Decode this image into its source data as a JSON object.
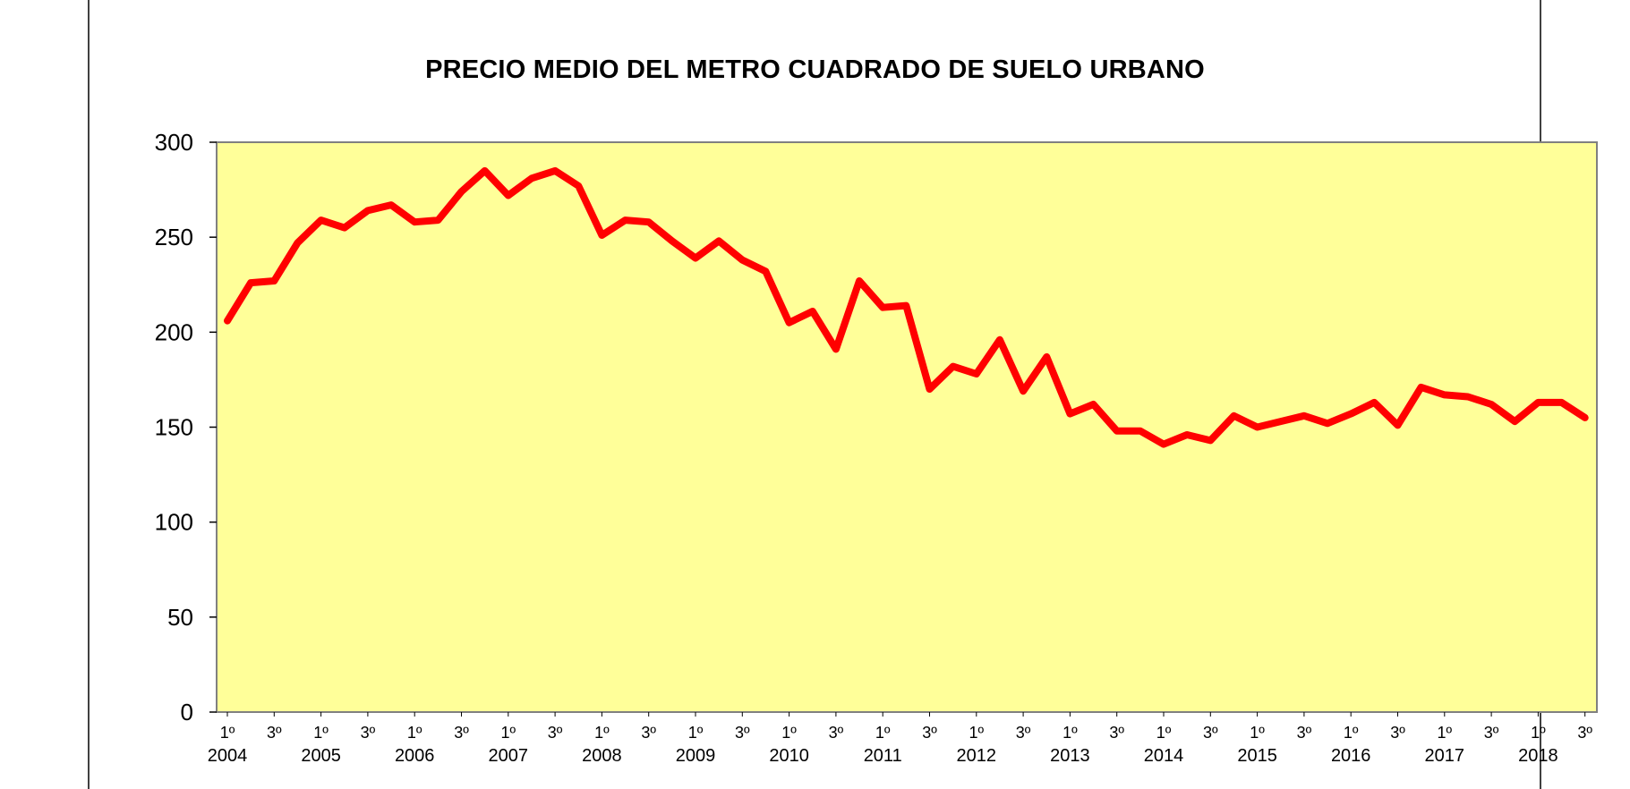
{
  "chart_data": {
    "type": "line",
    "title": "PRECIO MEDIO DEL METRO CUADRADO DE SUELO URBANO",
    "xlabel": "",
    "ylabel": "",
    "ylim": [
      0,
      300
    ],
    "yticks": [
      0,
      50,
      100,
      150,
      200,
      250,
      300
    ],
    "grid": false,
    "legend": "none",
    "colors": {
      "line": "#ff0000",
      "plot_background": "#ffff99",
      "plot_border": "#808080",
      "frame": "#000000"
    },
    "quarter_tick_labels": [
      "1º",
      "3º",
      "1º",
      "3º",
      "1º",
      "3º",
      "1º",
      "3º",
      "1º",
      "3º",
      "1º",
      "3º",
      "1º",
      "3º",
      "1º",
      "3º",
      "1º",
      "3º",
      "1º",
      "3º",
      "1º",
      "3º",
      "1º",
      "3º",
      "1º",
      "3º",
      "1º",
      "3º",
      "1º",
      "3º"
    ],
    "year_labels": [
      "2004",
      "2005",
      "2006",
      "2007",
      "2008",
      "2009",
      "2010",
      "2011",
      "2012",
      "2013",
      "2014",
      "2015",
      "2016",
      "2017",
      "2018"
    ],
    "series": [
      {
        "values": [
          206,
          226,
          227,
          247,
          259,
          255,
          264,
          267,
          258,
          259,
          274,
          285,
          272,
          281,
          285,
          277,
          251,
          259,
          258,
          248,
          239,
          248,
          238,
          232,
          205,
          211,
          191,
          227,
          213,
          214,
          170,
          182,
          178,
          196,
          169,
          187,
          157,
          162,
          148,
          148,
          141,
          146,
          143,
          156,
          150,
          153,
          156,
          152,
          157,
          163,
          151,
          171,
          167,
          166,
          162,
          153,
          163,
          163,
          155
        ]
      }
    ]
  }
}
